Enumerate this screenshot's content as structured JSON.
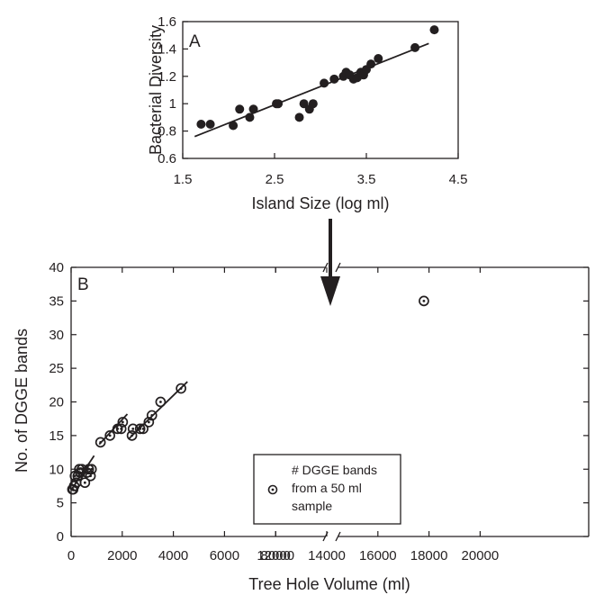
{
  "chart_data": [
    {
      "type": "scatter",
      "panel_label": "A",
      "xlabel": "Island Size (log ml)",
      "ylabel": "Bacterial Diversity",
      "xlim": [
        1.5,
        4.5
      ],
      "ylim": [
        0.6,
        1.6
      ],
      "xticks": [
        "1.5",
        "2.5",
        "3.5",
        "4.5"
      ],
      "yticks": [
        "0.6",
        "0.8",
        "1",
        "1.2",
        "1.4",
        "1.6"
      ],
      "points": [
        [
          1.7,
          0.85
        ],
        [
          1.8,
          0.85
        ],
        [
          2.05,
          0.84
        ],
        [
          2.12,
          0.96
        ],
        [
          2.23,
          0.9
        ],
        [
          2.27,
          0.96
        ],
        [
          2.52,
          1.0
        ],
        [
          2.54,
          1.0
        ],
        [
          2.77,
          0.9
        ],
        [
          2.82,
          1.0
        ],
        [
          2.88,
          0.96
        ],
        [
          2.92,
          1.0
        ],
        [
          3.04,
          1.15
        ],
        [
          3.15,
          1.18
        ],
        [
          3.25,
          1.2
        ],
        [
          3.28,
          1.23
        ],
        [
          3.32,
          1.21
        ],
        [
          3.36,
          1.18
        ],
        [
          3.4,
          1.19
        ],
        [
          3.44,
          1.23
        ],
        [
          3.47,
          1.21
        ],
        [
          3.5,
          1.25
        ],
        [
          3.55,
          1.29
        ],
        [
          3.63,
          1.33
        ],
        [
          4.03,
          1.41
        ],
        [
          4.24,
          1.54
        ]
      ],
      "fit_line": [
        [
          1.63,
          0.76
        ],
        [
          4.18,
          1.44
        ]
      ],
      "grid": false
    },
    {
      "type": "scatter",
      "panel_label": "B",
      "xlabel": "Tree Hole Volume (ml)",
      "ylabel": "No. of DGGE bands",
      "xlim": [
        0,
        20000
      ],
      "ylim": [
        0,
        40
      ],
      "xticks": [
        "0",
        "2000",
        "4000",
        "6000",
        "8000",
        "12000",
        "14000",
        "16000",
        "18000",
        "20000"
      ],
      "yticks": [
        "0",
        "5",
        "10",
        "15",
        "20",
        "25",
        "30",
        "35",
        "40"
      ],
      "axis_break": "between 8000 and 12000",
      "points": [
        [
          50,
          7
        ],
        [
          80,
          7
        ],
        [
          120,
          7.5
        ],
        [
          150,
          9
        ],
        [
          200,
          8
        ],
        [
          260,
          9
        ],
        [
          320,
          10
        ],
        [
          360,
          9.5
        ],
        [
          420,
          10
        ],
        [
          540,
          8
        ],
        [
          620,
          9.5
        ],
        [
          690,
          10
        ],
        [
          760,
          9
        ],
        [
          800,
          10
        ],
        [
          1150,
          14
        ],
        [
          1520,
          15
        ],
        [
          1820,
          16
        ],
        [
          1960,
          16
        ],
        [
          2020,
          17
        ],
        [
          2380,
          15
        ],
        [
          2420,
          16
        ],
        [
          2700,
          16
        ],
        [
          2820,
          16
        ],
        [
          3040,
          17
        ],
        [
          3160,
          18
        ],
        [
          3500,
          20
        ],
        [
          4300,
          22
        ],
        [
          17800,
          35
        ]
      ],
      "fit_lines": [
        [
          [
            0,
            6.9
          ],
          [
            900,
            12.0
          ]
        ],
        [
          [
            1100,
            13.7
          ],
          [
            2200,
            18.2
          ]
        ],
        [
          [
            2250,
            14.5
          ],
          [
            4550,
            23.0
          ]
        ]
      ],
      "legend": {
        "position": "bottom-center",
        "label_lines": [
          "# DGGE bands",
          "from a 50 ml",
          "sample"
        ]
      },
      "grid": false
    }
  ]
}
